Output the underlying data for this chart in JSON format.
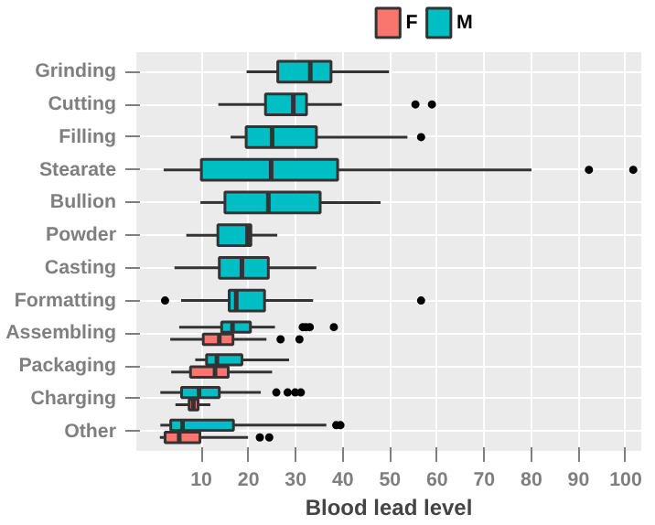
{
  "chart_data": {
    "type": "box",
    "orientation": "horizontal",
    "xlabel": "Blood lead level",
    "categories": [
      "Grinding",
      "Cutting",
      "Filling",
      "Stearate",
      "Bullion",
      "Powder",
      "Casting",
      "Formatting",
      "Assembling",
      "Packaging",
      "Charging",
      "Other"
    ],
    "xlim": [
      -3.8,
      103.3
    ],
    "xticks": [
      10,
      20,
      30,
      40,
      50,
      60,
      70,
      80,
      90,
      100
    ],
    "grid": true,
    "legend": "top",
    "series": [
      {
        "name": "F",
        "color": "#f8766d",
        "boxes": [
          null,
          null,
          null,
          null,
          null,
          null,
          null,
          null,
          {
            "low": 3.4,
            "q1": 10.4,
            "median": 13.8,
            "q3": 16.7,
            "high": 23.8,
            "outliers": [
              26.8,
              30.8
            ]
          },
          {
            "low": 3.6,
            "q1": 7.7,
            "median": 12.9,
            "q3": 15.7,
            "high": 25.0
          },
          {
            "low": 4.5,
            "q1": 7.4,
            "median": 8.3,
            "q3": 9.3,
            "high": 11.9
          },
          {
            "low": 1.2,
            "q1": 2.3,
            "median": 5.3,
            "q3": 9.7,
            "high": 19.9,
            "outliers": [
              22.4,
              24.4
            ]
          }
        ]
      },
      {
        "name": "M",
        "color": "#00bfc4",
        "boxes": [
          {
            "low": 19.6,
            "q1": 26.2,
            "median": 33.1,
            "q3": 37.5,
            "high": 49.8
          },
          {
            "low": 13.6,
            "q1": 23.6,
            "median": 29.5,
            "q3": 32.3,
            "high": 39.8,
            "outliers": [
              55.4,
              58.9
            ]
          },
          {
            "low": 16.2,
            "q1": 19.5,
            "median": 25.0,
            "q3": 34.4,
            "high": 53.7,
            "outliers": [
              56.6
            ]
          },
          {
            "low": 2.0,
            "q1": 10.0,
            "median": 24.8,
            "q3": 38.9,
            "high": 80.0,
            "outliers": [
              92.2,
              101.6
            ]
          },
          {
            "low": 9.8,
            "q1": 15.0,
            "median": 24.2,
            "q3": 35.2,
            "high": 48.0
          },
          {
            "low": 6.8,
            "q1": 13.5,
            "median": 19.8,
            "q3": 20.5,
            "high": 26.1
          },
          {
            "low": 4.3,
            "q1": 13.8,
            "median": 18.6,
            "q3": 24.2,
            "high": 34.4
          },
          {
            "low": 5.7,
            "q1": 15.9,
            "median": 17.4,
            "q3": 23.4,
            "high": 33.7,
            "outliers": [
              2.3,
              56.6
            ]
          },
          {
            "low": 5.3,
            "q1": 14.3,
            "median": 16.6,
            "q3": 20.4,
            "high": 25.6,
            "outliers": [
              31.5,
              32.2,
              33.0,
              38.1
            ]
          },
          {
            "low": 8.7,
            "q1": 11.1,
            "median": 13.3,
            "q3": 18.6,
            "high": 28.6
          },
          {
            "low": 1.3,
            "q1": 5.8,
            "median": 9.5,
            "q3": 13.8,
            "high": 22.6,
            "outliers": [
              25.9,
              28.3,
              29.9,
              31.1
            ]
          },
          {
            "low": 1.3,
            "q1": 3.5,
            "median": 6.0,
            "q3": 16.8,
            "high": 36.5,
            "outliers": [
              38.6,
              39.5
            ]
          }
        ]
      }
    ]
  }
}
